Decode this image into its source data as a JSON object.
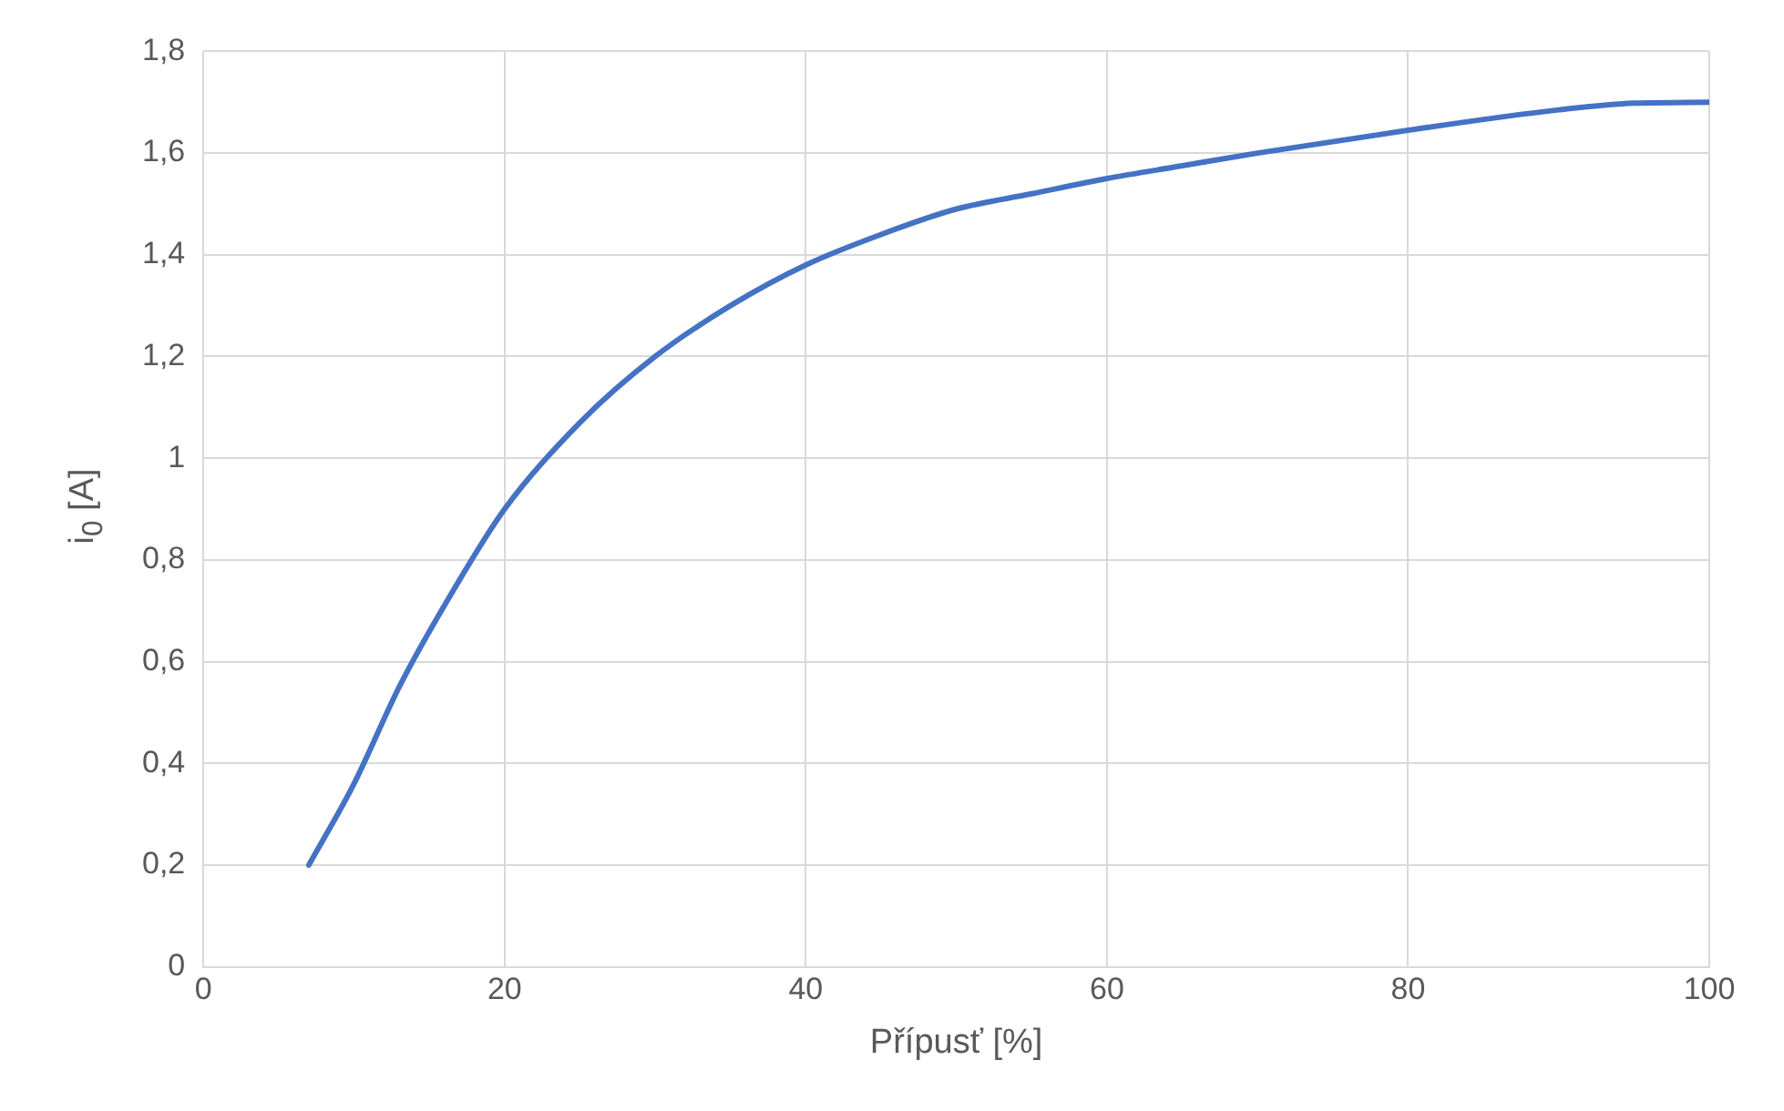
{
  "chart_data": {
    "type": "line",
    "xlabel": "Přípusť [%]",
    "ylabel": "i$_{0}$ [A]",
    "x": [
      7,
      10,
      13,
      16,
      20,
      25,
      30,
      35,
      40,
      45,
      50,
      55,
      60,
      65,
      70,
      80,
      90,
      95,
      100
    ],
    "series": [
      {
        "color": "#4472c4",
        "values": [
          0.2,
          0.36,
          0.55,
          0.71,
          0.9,
          1.07,
          1.2,
          1.3,
          1.38,
          1.44,
          1.49,
          1.52,
          1.55,
          1.575,
          1.6,
          1.645,
          1.685,
          1.698,
          1.7
        ]
      }
    ],
    "xlim": [
      0,
      100
    ],
    "xticks": [
      0,
      20,
      40,
      60,
      80,
      100
    ],
    "ylim": [
      0,
      1.8
    ],
    "yticks": [
      0,
      {
        "value": 0.2,
        "label": "0,2"
      },
      {
        "value": 0.4,
        "label": "0,4"
      },
      {
        "value": 0.6,
        "label": "0,6"
      },
      {
        "value": 0.8,
        "label": "0,8"
      },
      1,
      {
        "value": 1.2,
        "label": "1,2"
      },
      {
        "value": 1.4,
        "label": "1,4"
      },
      {
        "value": 1.6,
        "label": "1,6"
      },
      {
        "value": 1.8,
        "label": "1,8"
      }
    ],
    "grid": true,
    "marker": "none",
    "line_style": "solid",
    "legend": false
  }
}
